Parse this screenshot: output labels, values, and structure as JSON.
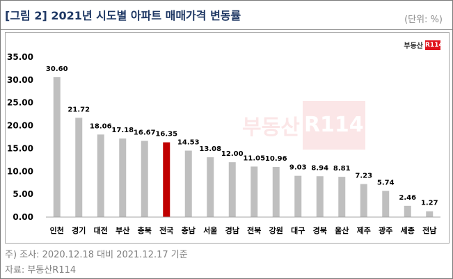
{
  "header": {
    "title": "[그림 2] 2021년 시도별 아파트 매매가격 변동률",
    "unit": "(단위: %)"
  },
  "brand": {
    "text": "부동산",
    "box": "R114"
  },
  "footnotes": {
    "note": "주) 조사: 2020.12.18 대비 2021.12.17 기준",
    "source": "자료: 부동산R114"
  },
  "colors": {
    "bar": "#bfbfbf",
    "highlight": "#c00000",
    "axis": "#a6a6a6"
  },
  "chart_data": {
    "type": "bar",
    "categories": [
      "인천",
      "경기",
      "대전",
      "부산",
      "충북",
      "전국",
      "충남",
      "서울",
      "경남",
      "전북",
      "강원",
      "대구",
      "경북",
      "울산",
      "제주",
      "광주",
      "세종",
      "전남"
    ],
    "values": [
      30.6,
      21.72,
      18.06,
      17.18,
      16.67,
      16.35,
      14.53,
      13.08,
      12.0,
      11.05,
      10.96,
      9.03,
      8.94,
      8.81,
      7.23,
      5.74,
      2.46,
      1.27
    ],
    "data_labels": [
      "30.60",
      "21.72",
      "18.06",
      "17.18",
      "16.67",
      "16.35",
      "14.53",
      "13.08",
      "12.00",
      "11.05",
      "10.96",
      "9.03",
      "8.94",
      "8.81",
      "7.23",
      "5.74",
      "2.46",
      "1.27"
    ],
    "highlight_category": "전국",
    "title": "",
    "xlabel": "",
    "ylabel": "",
    "ylim": [
      0,
      35
    ],
    "yticks": [
      0,
      5,
      10,
      15,
      20,
      25,
      30,
      35
    ],
    "ytick_labels": [
      "0.00",
      "5.00",
      "10.00",
      "15.00",
      "20.00",
      "25.00",
      "30.00",
      "35.00"
    ],
    "grid": false,
    "legend": "none"
  }
}
